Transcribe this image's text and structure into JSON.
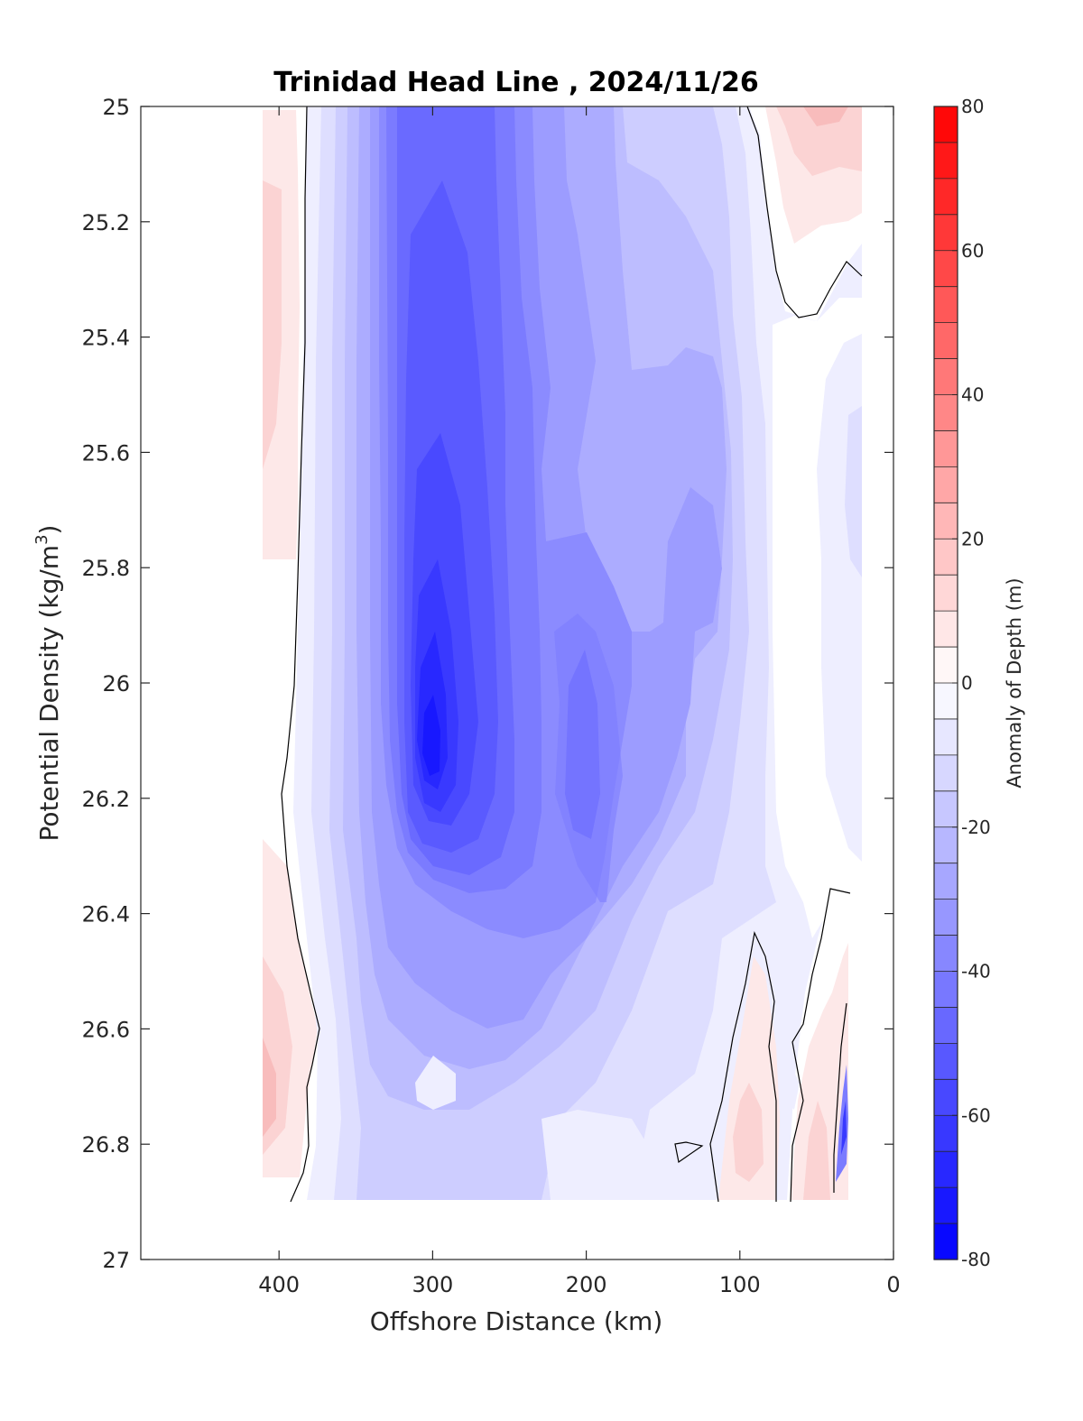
{
  "chart_data": {
    "type": "heatmap",
    "title": "Trinidad Head Line , 2024/11/26",
    "xlabel": "Offshore Distance (km)",
    "ylabel_main": "Potential Density (kg/m",
    "ylabel_sup": "3",
    "ylabel_close": ")",
    "colorbar_label": "Anomaly of Depth (m)",
    "xlim": [
      490,
      0
    ],
    "x_reversed": true,
    "ylim": [
      25,
      27
    ],
    "y_reversed": true,
    "xticks": [
      400,
      300,
      200,
      100,
      0
    ],
    "xtick_labels": [
      "400",
      "300",
      "200",
      "100",
      "0"
    ],
    "yticks": [
      25,
      25.2,
      25.4,
      25.6,
      25.8,
      26,
      26.2,
      26.4,
      26.6,
      26.8,
      27
    ],
    "ytick_labels": [
      "25",
      "25.2",
      "25.4",
      "25.6",
      "25.8",
      "26",
      "26.2",
      "26.4",
      "26.6",
      "26.8",
      "27"
    ],
    "colorbar_range": [
      -80,
      80
    ],
    "colorbar_step": 5,
    "colorbar_ticks": [
      80,
      60,
      40,
      20,
      0,
      -20,
      -40,
      -60,
      -80
    ],
    "colorbar_tick_labels": [
      "80",
      "60",
      "40",
      "20",
      "0",
      "-20",
      "-40",
      "-60",
      "-80"
    ],
    "colormap": {
      "negative": "#0000ff",
      "zero": "#ffffff",
      "positive": "#ff0000"
    },
    "data_extent": {
      "x": [
        410,
        20
      ],
      "y": [
        25,
        26.9
      ]
    },
    "field_description": "anomaly of depth (m) on offshore distance vs potential density grid",
    "anomaly_bands": [
      {
        "x": 410,
        "y": [
          25.0,
          25.6
        ],
        "value": 5
      },
      {
        "x": 385,
        "y": [
          25.0,
          26.9
        ],
        "value": -5
      },
      {
        "x": 310,
        "y": [
          25.0,
          26.9
        ],
        "value": -25
      },
      {
        "x": 305,
        "y": [
          25.4,
          26.4
        ],
        "value": -45
      },
      {
        "x": 305,
        "y": [
          25.8,
          26.3
        ],
        "value": -60
      },
      {
        "x": 305,
        "y": [
          26.1,
          26.2
        ],
        "value": -70
      },
      {
        "x": 200,
        "y": [
          26.0,
          26.3
        ],
        "value": -40
      },
      {
        "x": 100,
        "y": [
          25.0,
          25.3
        ],
        "value": 8
      },
      {
        "x": 90,
        "y": [
          26.7,
          26.9
        ],
        "value": 10
      },
      {
        "x": 40,
        "y": [
          25.2,
          26.9
        ],
        "value": -5
      }
    ]
  }
}
